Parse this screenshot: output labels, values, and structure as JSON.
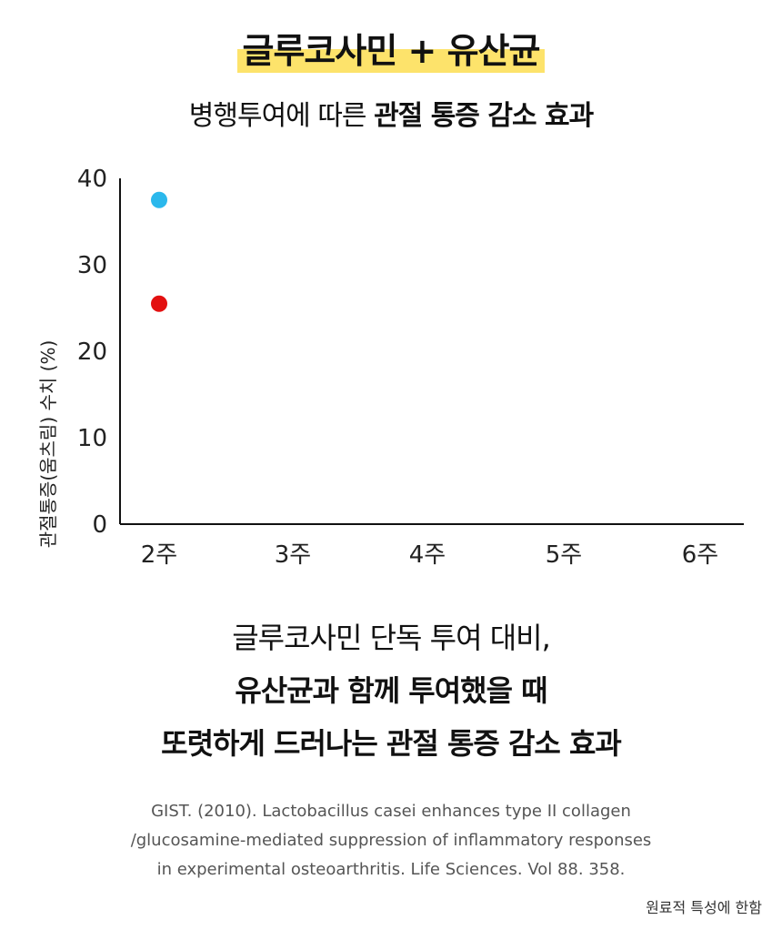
{
  "header": {
    "title": "글루코사민 + 유산균",
    "subtitle_plain": "병행투여에 따른 ",
    "subtitle_bold": "관절 통증 감소 효과"
  },
  "chart_data": {
    "type": "scatter",
    "ylabel": "관절통증(움츠림) 수치 (%)",
    "ylim": [
      0,
      40
    ],
    "yticks": [
      "0",
      "10",
      "20",
      "30",
      "40"
    ],
    "categories": [
      "2주",
      "3주",
      "4주",
      "5주",
      "6주"
    ],
    "series": [
      {
        "color": "#2bb8ec",
        "points": [
          {
            "x": "2주",
            "y": 37.5
          }
        ]
      },
      {
        "color": "#e31010",
        "points": [
          {
            "x": "2주",
            "y": 25.5
          }
        ]
      }
    ],
    "grid": false
  },
  "conclusion": {
    "line1": "글루코사민 단독 투여 대비,",
    "line2": "유산균과 함께 투여했을 때",
    "line3": "또렷하게 드러나는 관절 통증 감소 효과"
  },
  "reference": {
    "line1": "GIST. (2010). Lactobacillus casei enhances type II collagen",
    "line2": "/glucosamine-mediated suppression of inflammatory responses",
    "line3": "in experimental osteoarthritis. Life Sciences. Vol 88. 358."
  },
  "note": "원료적 특성에 한함"
}
